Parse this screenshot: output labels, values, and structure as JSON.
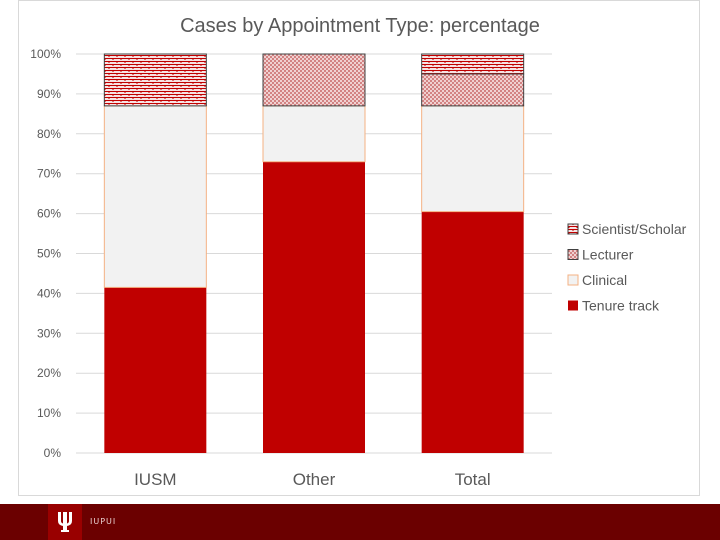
{
  "footer": {
    "label": "IUPUI"
  },
  "colors": {
    "tenure": "#c00000",
    "clinical": "#f2f2f2",
    "clinical_border": "#f4b183",
    "pattern": "#c00000",
    "footer_bg": "#6b0000"
  },
  "chart_data": {
    "type": "bar",
    "stacked": true,
    "title": "Cases by Appointment Type:  percentage",
    "categories": [
      "IUSM",
      "Other",
      "Total"
    ],
    "ylim": [
      0,
      100
    ],
    "yticks": [
      0,
      10,
      20,
      30,
      40,
      50,
      60,
      70,
      80,
      90,
      100
    ],
    "ytick_labels": [
      "0%",
      "10%",
      "20%",
      "30%",
      "40%",
      "50%",
      "60%",
      "70%",
      "80%",
      "90%",
      "100%"
    ],
    "grid": true,
    "legend_position": "right",
    "series": [
      {
        "name": "Tenure track",
        "key": "tenure",
        "values": [
          41.5,
          73,
          60.5
        ]
      },
      {
        "name": "Clinical",
        "key": "clinical",
        "values": [
          45.5,
          14,
          26.5
        ]
      },
      {
        "name": "Lecturer",
        "key": "lecturer",
        "values": [
          0,
          13,
          8
        ]
      },
      {
        "name": "Scientist/Scholar",
        "key": "scientist",
        "values": [
          13,
          0,
          5
        ]
      }
    ]
  }
}
